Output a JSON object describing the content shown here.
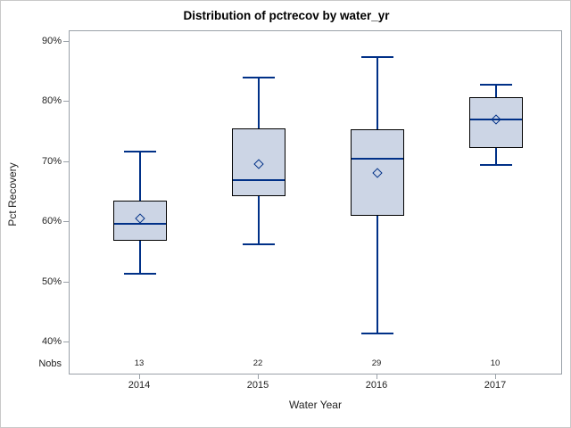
{
  "chart_data": {
    "type": "box",
    "title": "Distribution of pctrecov by water_yr",
    "xlabel": "Water Year",
    "ylabel": "Pct Recovery",
    "nobs_label": "Nobs",
    "categories": [
      "2014",
      "2015",
      "2016",
      "2017"
    ],
    "y_ticks": [
      {
        "label": "90%",
        "value": 90
      },
      {
        "label": "80%",
        "value": 80
      },
      {
        "label": "70%",
        "value": 70
      },
      {
        "label": "60%",
        "value": 60
      },
      {
        "label": "50%",
        "value": 50
      },
      {
        "label": "40%",
        "value": 40
      }
    ],
    "ylim": [
      40,
      90
    ],
    "grid": false,
    "legend": "none",
    "boxes": [
      {
        "category": "2014",
        "nobs": "13",
        "min": 51.5,
        "q1": 56.9,
        "median": 59.8,
        "mean": 60.6,
        "q3": 63.6,
        "max": 71.7
      },
      {
        "category": "2015",
        "nobs": "22",
        "min": 56.3,
        "q1": 64.4,
        "median": 67.0,
        "mean": 69.7,
        "q3": 75.6,
        "max": 84.1
      },
      {
        "category": "2016",
        "nobs": "29",
        "min": 41.5,
        "q1": 61.1,
        "median": 70.6,
        "mean": 68.2,
        "q3": 75.5,
        "max": 87.5
      },
      {
        "category": "2017",
        "nobs": "10",
        "min": 69.5,
        "q1": 72.4,
        "median": 77.1,
        "mean": 77.1,
        "q3": 80.8,
        "max": 82.9
      }
    ],
    "colors": {
      "box_fill": "#ccd5e5",
      "box_border": "#000000",
      "line": "#003087",
      "frame": "#9aa1a8",
      "text": "#222222",
      "figure_border": "#c9c9c9"
    }
  }
}
